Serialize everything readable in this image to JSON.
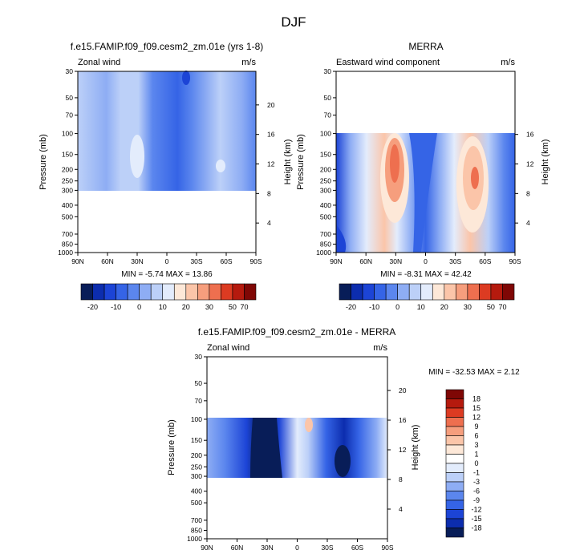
{
  "figure": {
    "title": "DJF"
  },
  "chart_data": [
    {
      "type": "contour",
      "title": "f.e15.FAMIP.f09_f09.cesm2_zm.01e (yrs 1-8)",
      "left_label": "Zonal wind",
      "right_label": "m/s",
      "ylabel": "Pressure (mb)",
      "ylabel_right": "Height (km)",
      "x_ticks": [
        "90N",
        "60N",
        "30N",
        "0",
        "30S",
        "60S",
        "90S"
      ],
      "y_ticks": [
        "30",
        "50",
        "70",
        "100",
        "150",
        "200",
        "250",
        "300",
        "400",
        "500",
        "700",
        "850",
        "1000"
      ],
      "y_right_ticks": [
        "20",
        "16",
        "12",
        "8",
        "4"
      ],
      "ylim": [
        1000,
        30
      ],
      "data_pressure_range": [
        300,
        30
      ],
      "stats": "MIN = -5.74  MAX = 13.86",
      "colorbar_labels": [
        "-20",
        "-10",
        "0",
        "10",
        "20",
        "30",
        "50",
        "70"
      ]
    },
    {
      "type": "contour",
      "title": "MERRA",
      "left_label": "Eastward wind component",
      "right_label": "m/s",
      "ylabel": "Pressure (mb)",
      "ylabel_right": "Height (km)",
      "x_ticks": [
        "90N",
        "60N",
        "30N",
        "0",
        "30S",
        "60S",
        "90S"
      ],
      "y_ticks": [
        "30",
        "50",
        "70",
        "100",
        "150",
        "200",
        "250",
        "300",
        "400",
        "500",
        "700",
        "850",
        "1000"
      ],
      "y_right_ticks": [
        "16",
        "12",
        "8",
        "4"
      ],
      "ylim": [
        1000,
        30
      ],
      "data_pressure_range": [
        1000,
        100
      ],
      "stats": "MIN = -8.31  MAX = 42.42",
      "colorbar_labels": [
        "-20",
        "-10",
        "0",
        "10",
        "20",
        "30",
        "50",
        "70"
      ]
    },
    {
      "type": "contour",
      "title": "f.e15.FAMIP.f09_f09.cesm2_zm.01e - MERRA",
      "left_label": "Zonal wind",
      "right_label": "m/s",
      "ylabel": "Pressure (mb)",
      "ylabel_right": "Height (km)",
      "x_ticks": [
        "90N",
        "60N",
        "30N",
        "0",
        "30S",
        "60S",
        "90S"
      ],
      "y_ticks": [
        "30",
        "50",
        "70",
        "100",
        "150",
        "200",
        "250",
        "300",
        "400",
        "500",
        "700",
        "850",
        "1000"
      ],
      "y_right_ticks": [
        "20",
        "16",
        "12",
        "8",
        "4"
      ],
      "ylim": [
        1000,
        30
      ],
      "data_pressure_range": [
        300,
        100
      ],
      "stats": "MIN = -32.53  MAX =  2.12",
      "colorbar_labels": [
        "18",
        "15",
        "12",
        "9",
        "6",
        "3",
        "1",
        "0",
        "-1",
        "-3",
        "-6",
        "-9",
        "-12",
        "-15",
        "-18"
      ]
    }
  ],
  "colors": {
    "abs_scale": [
      "#081d58",
      "#0c2dae",
      "#1c44d6",
      "#3564e6",
      "#5b86ee",
      "#8eadf4",
      "#bcd0f8",
      "#e3ecfc",
      "#fde8d8",
      "#fbc5a9",
      "#f69e7d",
      "#ee6f4f",
      "#dc3b22",
      "#b51a0e",
      "#7f0705"
    ],
    "diff_scale": [
      "#7f0705",
      "#b51a0e",
      "#dc3b22",
      "#ee6f4f",
      "#f69e7d",
      "#fbc5a9",
      "#fde8d8",
      "#ffffff",
      "#e3ecfc",
      "#bcd0f8",
      "#8eadf4",
      "#5b86ee",
      "#3564e6",
      "#1c44d6",
      "#0c2dae",
      "#081d58"
    ]
  }
}
